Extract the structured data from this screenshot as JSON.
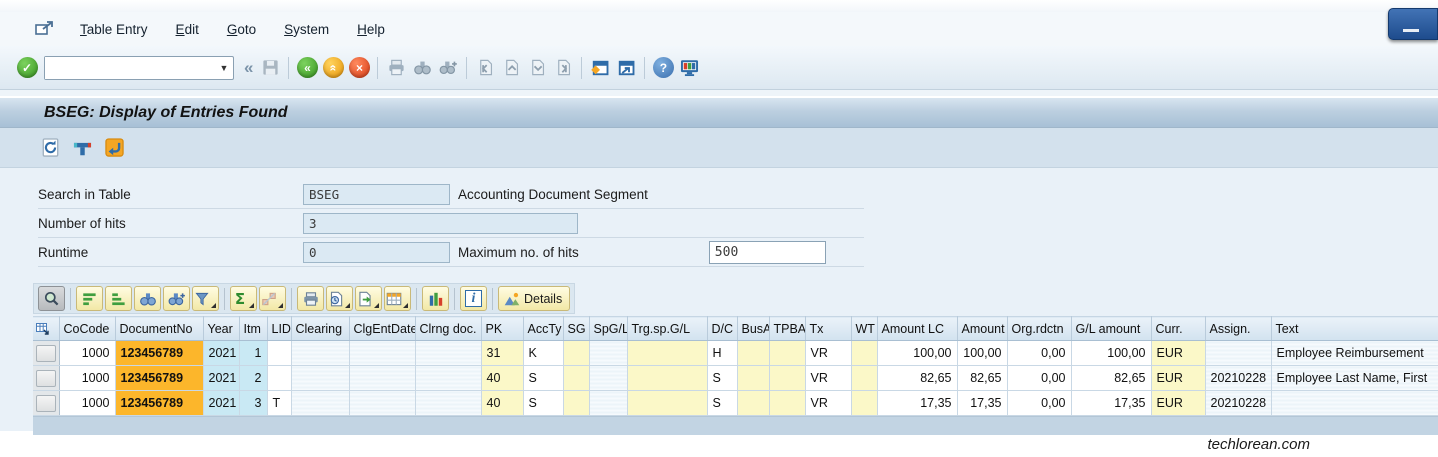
{
  "window": {
    "watermark": "techlorean.com"
  },
  "menu_bar": {
    "items": [
      {
        "label": "Table Entry"
      },
      {
        "label": "Edit"
      },
      {
        "label": "Goto"
      },
      {
        "label": "System"
      },
      {
        "label": "Help"
      }
    ]
  },
  "standard_toolbar": {
    "command_field_value": ""
  },
  "title_bar": {
    "title": "BSEG: Display of Entries Found"
  },
  "selection_form": {
    "rows": [
      {
        "label": "Search in Table",
        "value": "BSEG",
        "description": "Accounting Document Segment"
      },
      {
        "label": "Number of hits",
        "value": "3",
        "description": ""
      },
      {
        "label": "Runtime",
        "value": "0",
        "description": "Maximum no. of hits",
        "max_hits_value": "500"
      }
    ]
  },
  "alv_toolbar": {
    "details_button_label": "Details"
  },
  "grid": {
    "columns": [
      "",
      "CoCode",
      "DocumentNo",
      "Year",
      "Itm",
      "LID",
      "Clearing",
      "ClgEntDate",
      "Clrng doc.",
      "PK",
      "AccTy",
      "SG",
      "SpG/L",
      "Trg.sp.G/L",
      "D/C",
      "BusA",
      "TPBA",
      "Tx",
      "WT",
      "Amount LC",
      "Amount",
      "Org.rdctn",
      "G/L amount",
      "Curr.",
      "Assign.",
      "Text"
    ],
    "rows": [
      [
        "",
        "1000",
        "123456789",
        "2021",
        "1",
        "",
        "",
        "",
        "",
        "31",
        "K",
        "",
        "",
        "",
        "H",
        "",
        "",
        "VR",
        "",
        "100,00",
        "100,00",
        "0,00",
        "100,00",
        "EUR",
        "",
        "Employee Reimbursement"
      ],
      [
        "",
        "1000",
        "123456789",
        "2021",
        "2",
        "",
        "",
        "",
        "",
        "40",
        "S",
        "",
        "",
        "",
        "S",
        "",
        "",
        "VR",
        "",
        "82,65",
        "82,65",
        "0,00",
        "82,65",
        "EUR",
        "20210228",
        "Employee Last Name, First"
      ],
      [
        "",
        "1000",
        "123456789",
        "2021",
        "3",
        "T",
        "",
        "",
        "",
        "40",
        "S",
        "",
        "",
        "",
        "S",
        "",
        "",
        "VR",
        "",
        "17,35",
        "17,35",
        "0,00",
        "17,35",
        "EUR",
        "20210228",
        ""
      ]
    ]
  },
  "icons": {
    "enter_check": "✓",
    "collapse_chevrons": "«",
    "back_chevrons": "«",
    "up_chevron": "«",
    "exit_x": "×",
    "help_q": "?",
    "dropdown_arrow": "▼",
    "sum_sigma": "Σ",
    "info_i": "i"
  },
  "colors": {
    "document_highlight": "#fcb62b",
    "key_cell_yellow": "#fbf8c8",
    "year_item_cyan": "#c9e9f4",
    "title_bar_blue": "#aec5da",
    "status_green": "#36941f",
    "status_orange": "#e89506",
    "status_red": "#d83a14"
  }
}
